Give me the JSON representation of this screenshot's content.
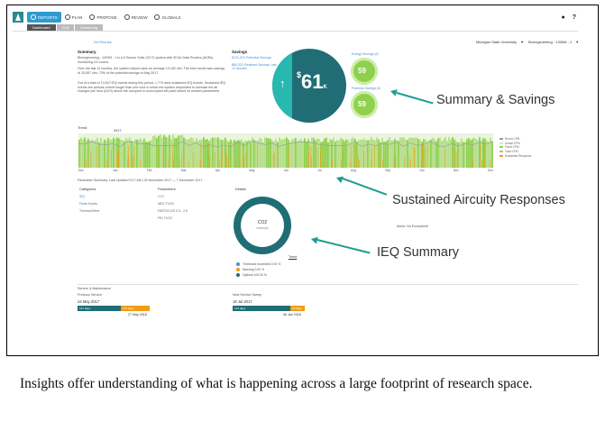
{
  "nav": {
    "items": [
      {
        "label": "REPORTS",
        "active": true
      },
      {
        "label": "PLAN",
        "active": false
      },
      {
        "label": "PROPOSE",
        "active": false
      },
      {
        "label": "REVIEW",
        "active": false
      },
      {
        "label": "GLOBALS",
        "active": false
      }
    ],
    "icons": [
      "user-icon",
      "help-icon"
    ],
    "help_label": "?"
  },
  "subtabs": [
    "Dashboard",
    "Chill",
    "Monitoring"
  ],
  "no_results": "No Results",
  "dropdowns": {
    "university": "Michigan State University",
    "building": "Bioengineering - 1300M - 1"
  },
  "summary": {
    "title": "Summary",
    "para1": "Bioengineering - 1300M - 1 is a 6 Sensor Suite (OCT) system with 50 Air Data Routers (ADRs) monitoring 111 rooms.",
    "para2": "Over the last 12 months, the system helped save an average 13,182 cfm. The best month saw savings of 15,557 cfm, 73% of the potential savings in May 2017.",
    "para3": "Out of a total of 13,547 IEQ events during this period, 1,779 were sustained IEQ events. Sustained IEQ events are periods of time longer than one hour in which the system responded to increase the air changes per hour (ACH) above the occupied or unoccupied set point based on sensed parameters."
  },
  "savings": {
    "title": "Savings",
    "items": [
      "$131,323 Potential Savings",
      "$60,021 Realized Savings Last 12 Months"
    ],
    "big_value": "61",
    "big_currency": "$",
    "big_unit": "K",
    "small": [
      {
        "label": "Energy Savings (k)",
        "value": "59"
      },
      {
        "label": "Potential Savings (k)",
        "value": "59"
      }
    ]
  },
  "callouts": {
    "summary_savings": "Summary & Savings",
    "aircuity": "Sustained Aircuity Responses",
    "ieq": "IEQ Summary"
  },
  "trend": {
    "title": "Trend",
    "year": "2017",
    "months": [
      "Dec",
      "Jan",
      "Feb",
      "Mar",
      "Apr",
      "May",
      "Jun",
      "Jul",
      "Aug",
      "Sep",
      "Oct",
      "Nov",
      "Dec"
    ],
    "legend": [
      "Room CFM",
      "Actual CFM",
      "Fixed CFM",
      "Total CFM",
      "Sustained Response"
    ],
    "param_summary": "Parameter Summary: Last Updated 9:17 AM | 30 November 2017 — 7 December 2017"
  },
  "ieq": {
    "categories_title": "Categories",
    "categories": [
      "IEQ",
      "Fume Hoods",
      "Thermal/Other"
    ],
    "parameters_title": "Parameters",
    "parameters": [
      "CO2",
      "NEG TVOC",
      "PARTICLES 0.3 - 2.5",
      "PID TVOC"
    ],
    "details_title": "Details",
    "donut_title": "CO2",
    "donut_sub": "summary",
    "trend_link": "Trend",
    "legend": [
      "Threshold exceeded 0.00 %",
      "Warning 0.00 %",
      "Optimal 100.00 %"
    ],
    "alerts": "Alerts: No Exceptions!"
  },
  "service": {
    "title": "Service & Maintenance",
    "previous": {
      "label": "Previous Service",
      "date": "24 May 2017",
      "done": "197 days",
      "left": "170 days",
      "end": "27 May 2018"
    },
    "next": {
      "label": "Next Service Sweep",
      "date": "18 Jul 2017",
      "done": "134 days",
      "left": "19 days",
      "end": "06 Jan 2018"
    }
  },
  "caption": "Insights offer understanding of what is happening across a large footprint of research space.",
  "colors": {
    "teal": "#206d76",
    "light_teal": "#27b8b0",
    "green": "#8fd14f",
    "orange": "#f39c12",
    "blue": "#2e9ad1"
  }
}
